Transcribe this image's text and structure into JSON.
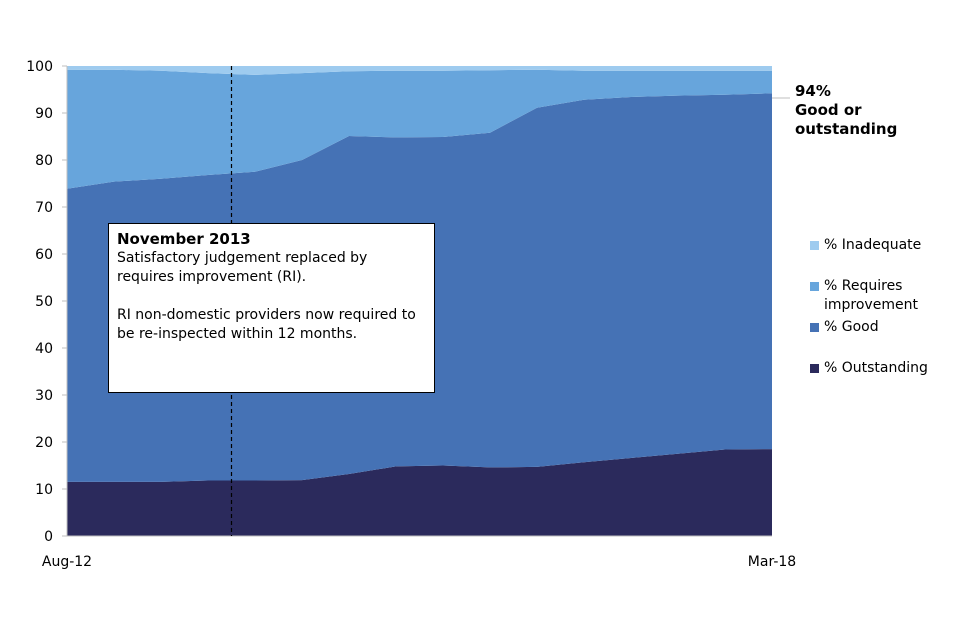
{
  "chart_data": {
    "type": "area",
    "stacked": true,
    "x_labels": [
      "Aug-12",
      "Mar-18"
    ],
    "x_points": 16,
    "ylim": [
      0,
      100
    ],
    "yticks": [
      0,
      10,
      20,
      30,
      40,
      50,
      60,
      70,
      80,
      90,
      100
    ],
    "series": [
      {
        "name": "% Outstanding",
        "color": "#2b2a5c",
        "values": [
          11.5,
          11.5,
          11.5,
          11.8,
          11.8,
          11.9,
          13.2,
          14.8,
          15.0,
          14.6,
          14.7,
          15.7,
          16.6,
          17.5,
          18.4,
          18.5
        ]
      },
      {
        "name": "% Good",
        "color": "#4572b5",
        "values": [
          62.4,
          63.9,
          64.5,
          65.0,
          65.7,
          68.1,
          71.9,
          70.0,
          69.9,
          71.2,
          76.4,
          77.1,
          76.8,
          76.2,
          75.5,
          75.7
        ]
      },
      {
        "name": "% Requires improvement",
        "color": "#67a5dc",
        "values": [
          25.3,
          23.8,
          23.0,
          21.7,
          20.6,
          18.5,
          13.8,
          14.2,
          14.1,
          13.3,
          8.1,
          6.2,
          5.6,
          5.3,
          5.1,
          4.8
        ]
      },
      {
        "name": "% Inadequate",
        "color": "#9ecbef",
        "values": [
          0.8,
          0.8,
          1.0,
          1.5,
          1.9,
          1.5,
          1.1,
          1.0,
          1.0,
          0.9,
          0.8,
          1.0,
          1.0,
          1.0,
          1.0,
          1.0
        ]
      }
    ],
    "legend_order": [
      "% Inadequate",
      "% Requires improvement",
      "% Good",
      "% Outstanding"
    ],
    "marker": {
      "index": 3.5,
      "style": "dashed"
    },
    "callout_lines": [
      "94%",
      "Good or",
      "outstanding"
    ],
    "annotation": {
      "title": "November 2013",
      "line1": "Satisfactory judgement replaced by requires improvement (RI).",
      "line2": "RI non-domestic providers now required to be re-inspected within 12 months."
    }
  }
}
